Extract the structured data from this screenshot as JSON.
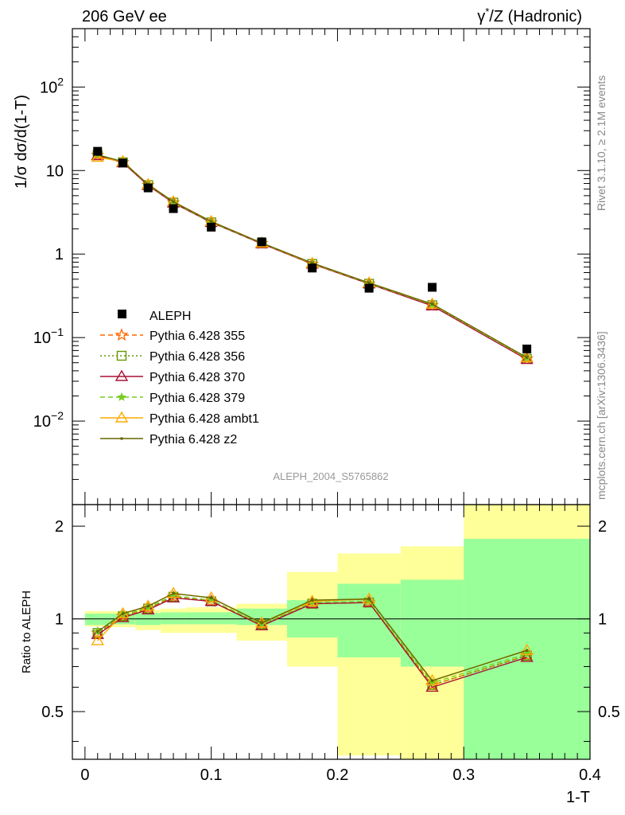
{
  "header": {
    "left_title": "206 GeV ee",
    "right_title_prefix": "γ",
    "right_title_sup": "*",
    "right_title_suffix": "/Z (Hadronic)"
  },
  "side_labels": {
    "rivet": "Rivet 3.1.10, ≥ 2.1M events",
    "mcplots": "mcplots.cern.ch [arXiv:1306.3436]"
  },
  "watermark": "ALEPH_2004_S5765862",
  "main_ylabel": "1/σ  dσ/d(1-T)",
  "ratio_ylabel": "Ratio to ALEPH",
  "xlabel": "1-T",
  "main_yticks": [
    {
      "value": 0.01,
      "base": "10",
      "exp": "−2"
    },
    {
      "value": 0.1,
      "base": "10",
      "exp": "−1"
    },
    {
      "value": 1,
      "base": "1",
      "exp": ""
    },
    {
      "value": 10,
      "base": "10",
      "exp": ""
    },
    {
      "value": 100,
      "base": "10",
      "exp": "2"
    }
  ],
  "ratio_yticks": [
    {
      "value": 0.5,
      "label": "0.5"
    },
    {
      "value": 1,
      "label": "1"
    },
    {
      "value": 2,
      "label": "2"
    }
  ],
  "xticks": [
    {
      "value": 0,
      "label": "0"
    },
    {
      "value": 0.1,
      "label": "0.1"
    },
    {
      "value": 0.2,
      "label": "0.2"
    },
    {
      "value": 0.3,
      "label": "0.3"
    },
    {
      "value": 0.4,
      "label": "0.4"
    }
  ],
  "colors": {
    "data": "#000000",
    "band_inner": "#99ff99",
    "band_outer": "#ffff99",
    "p355": "#ff6600",
    "p356": "#669900",
    "p370": "#aa1133",
    "p379": "#77cc22",
    "ambt1": "#ffaa00",
    "z2": "#666600"
  },
  "chart_data": {
    "type": "scatter",
    "x_range": [
      -0.01,
      0.4
    ],
    "main_y_range": [
      0.001,
      500
    ],
    "main_y_scale": "log",
    "ratio_y_range": [
      0.35,
      2.35
    ],
    "ratio_y_scale": "log",
    "legend_position": "middle-left",
    "data": {
      "name": "ALEPH",
      "bins": [
        [
          0.0,
          0.02
        ],
        [
          0.02,
          0.04
        ],
        [
          0.04,
          0.06
        ],
        [
          0.06,
          0.08
        ],
        [
          0.08,
          0.12
        ],
        [
          0.12,
          0.16
        ],
        [
          0.16,
          0.2
        ],
        [
          0.2,
          0.25
        ],
        [
          0.25,
          0.3
        ],
        [
          0.3,
          0.4
        ]
      ],
      "x": [
        0.01,
        0.03,
        0.05,
        0.07,
        0.1,
        0.14,
        0.18,
        0.225,
        0.275,
        0.35
      ],
      "y": [
        17.0,
        12.3,
        6.2,
        3.5,
        2.1,
        1.4,
        0.68,
        0.39,
        0.4,
        0.073
      ],
      "band_inner": [
        [
          0.955,
          1.04
        ],
        [
          0.96,
          1.04
        ],
        [
          0.955,
          1.045
        ],
        [
          0.96,
          1.05
        ],
        [
          0.96,
          1.05
        ],
        [
          0.955,
          1.08
        ],
        [
          0.87,
          1.15
        ],
        [
          0.75,
          1.3
        ],
        [
          0.7,
          1.34
        ],
        [
          0.35,
          1.82
        ]
      ],
      "band_outer": [
        [
          0.945,
          1.06
        ],
        [
          0.94,
          1.06
        ],
        [
          0.92,
          1.07
        ],
        [
          0.9,
          1.08
        ],
        [
          0.9,
          1.09
        ],
        [
          0.85,
          1.12
        ],
        [
          0.7,
          1.42
        ],
        [
          0.36,
          1.63
        ],
        [
          0.35,
          1.72
        ],
        [
          0.35,
          2.35
        ]
      ]
    },
    "series": [
      {
        "name": "Pythia 6.428 355",
        "key": "p355",
        "marker": "star",
        "dash": "6,4",
        "ratio": [
          0.9,
          1.02,
          1.08,
          1.18,
          1.14,
          0.96,
          1.12,
          1.13,
          0.61,
          0.76
        ]
      },
      {
        "name": "Pythia 6.428 356",
        "key": "p356",
        "marker": "square",
        "dash": "2,3",
        "ratio": [
          0.9,
          1.02,
          1.08,
          1.18,
          1.14,
          0.96,
          1.12,
          1.13,
          0.61,
          0.76
        ]
      },
      {
        "name": "Pythia 6.428 370",
        "key": "p370",
        "marker": "triangle",
        "dash": "",
        "ratio": [
          0.89,
          1.01,
          1.07,
          1.17,
          1.14,
          0.95,
          1.12,
          1.13,
          0.6,
          0.75
        ]
      },
      {
        "name": "Pythia 6.428 379",
        "key": "p379",
        "marker": "smallstar",
        "dash": "6,4",
        "ratio": [
          0.91,
          1.03,
          1.09,
          1.19,
          1.15,
          0.96,
          1.13,
          1.14,
          0.62,
          0.77
        ]
      },
      {
        "name": "Pythia 6.428 ambt1",
        "key": "ambt1",
        "marker": "triangle",
        "dash": "",
        "ratio": [
          0.85,
          1.04,
          1.1,
          1.21,
          1.17,
          0.97,
          1.14,
          1.16,
          0.63,
          0.79
        ]
      },
      {
        "name": "Pythia 6.428 z2",
        "key": "z2",
        "marker": "dot",
        "dash": "",
        "ratio": [
          0.91,
          1.04,
          1.1,
          1.21,
          1.17,
          0.97,
          1.15,
          1.16,
          0.63,
          0.79
        ]
      }
    ]
  }
}
